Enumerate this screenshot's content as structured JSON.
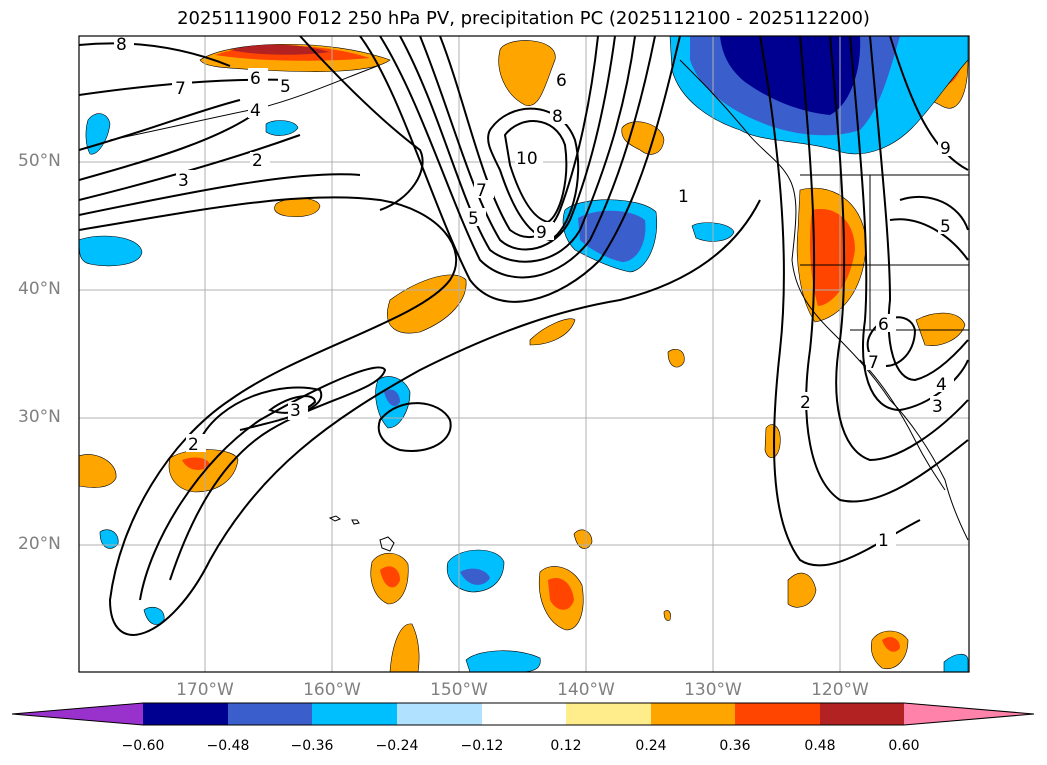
{
  "title": "2025111900 F012 250 hPa PV, precipitation PC (2025112100 - 2025112200)",
  "map": {
    "lat_labels": [
      "50°N",
      "40°N",
      "30°N",
      "20°N"
    ],
    "lon_labels": [
      "170°W",
      "160°W",
      "150°W",
      "140°W",
      "130°W",
      "120°W"
    ],
    "contour_labels": [
      "8",
      "7",
      "6",
      "5",
      "4",
      "3",
      "2",
      "3",
      "2",
      "10",
      "8",
      "6",
      "7",
      "5",
      "9",
      "1",
      "9",
      "5",
      "6",
      "7",
      "2",
      "3",
      "4",
      "1"
    ]
  },
  "colorbar": {
    "ticks": [
      "−0.60",
      "−0.48",
      "−0.36",
      "−0.24",
      "−0.12",
      "0.12",
      "0.24",
      "0.36",
      "0.48",
      "0.60"
    ],
    "colors": [
      "#9932cc",
      "#000090",
      "#3a5fcd",
      "#00bfff",
      "#b0e2ff",
      "#ffffff",
      "#ffec8b",
      "#ffa500",
      "#ff4500",
      "#b22222",
      "#ff82ab"
    ]
  }
}
